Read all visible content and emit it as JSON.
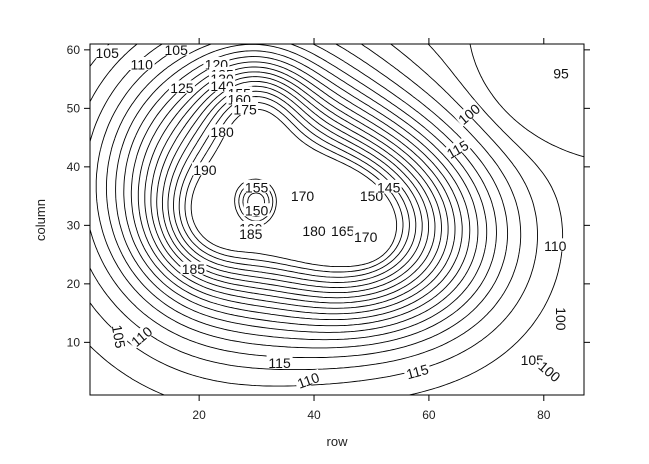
{
  "chart_data": {
    "type": "contour",
    "xlabel": "row",
    "ylabel": "column",
    "xlim": [
      1,
      87
    ],
    "ylim": [
      1,
      61
    ],
    "x_ticks": [
      20,
      40,
      60,
      80
    ],
    "y_ticks": [
      10,
      20,
      30,
      40,
      50,
      60
    ],
    "levels": [
      95,
      100,
      105,
      110,
      115,
      120,
      125,
      130,
      135,
      140,
      145,
      150,
      155,
      160,
      165,
      170,
      175,
      180,
      185,
      190
    ],
    "contour_labels": [
      {
        "text": "105",
        "x": 4,
        "y": 59.5
      },
      {
        "text": "105",
        "x": 16,
        "y": 60
      },
      {
        "text": "110",
        "x": 10,
        "y": 57.5
      },
      {
        "text": "120",
        "x": 23,
        "y": 57.5
      },
      {
        "text": "135",
        "x": 24,
        "y": 55.8
      },
      {
        "text": "130",
        "x": 24,
        "y": 55
      },
      {
        "text": "140",
        "x": 24,
        "y": 53.8
      },
      {
        "text": "125",
        "x": 17,
        "y": 53.5
      },
      {
        "text": "155",
        "x": 27,
        "y": 52.5
      },
      {
        "text": "160",
        "x": 27,
        "y": 51.5
      },
      {
        "text": "175",
        "x": 28,
        "y": 49.8
      },
      {
        "text": "180",
        "x": 24,
        "y": 46
      },
      {
        "text": "190",
        "x": 21,
        "y": 39.5
      },
      {
        "text": "155",
        "x": 30,
        "y": 36.5
      },
      {
        "text": "170",
        "x": 38,
        "y": 35
      },
      {
        "text": "150",
        "x": 50,
        "y": 35
      },
      {
        "text": "145",
        "x": 53,
        "y": 36.5
      },
      {
        "text": "150",
        "x": 30,
        "y": 32.5
      },
      {
        "text": "160",
        "x": 29,
        "y": 29.5
      },
      {
        "text": "185",
        "x": 29,
        "y": 28.5
      },
      {
        "text": "180",
        "x": 40,
        "y": 29
      },
      {
        "text": "165",
        "x": 45,
        "y": 29
      },
      {
        "text": "170",
        "x": 49,
        "y": 28
      },
      {
        "text": "185",
        "x": 19,
        "y": 22.5
      },
      {
        "text": "110",
        "x": 82,
        "y": 26.5
      },
      {
        "text": "95",
        "x": 83,
        "y": 56
      },
      {
        "text": "100",
        "x": 67,
        "y": 49,
        "angle": 40
      },
      {
        "text": "115",
        "x": 65,
        "y": 43,
        "angle": 30
      },
      {
        "text": "100",
        "x": 83,
        "y": 14,
        "angle": -90
      },
      {
        "text": "105",
        "x": 6,
        "y": 11,
        "angle": -80
      },
      {
        "text": "110",
        "x": 10,
        "y": 11,
        "angle": 40
      },
      {
        "text": "115",
        "x": 34,
        "y": 6.5
      },
      {
        "text": "110",
        "x": 39,
        "y": 3.5,
        "angle": 20
      },
      {
        "text": "115",
        "x": 58,
        "y": 5,
        "angle": 15
      },
      {
        "text": "105",
        "x": 78,
        "y": 7
      },
      {
        "text": "100",
        "x": 81,
        "y": 5,
        "angle": -40
      }
    ]
  }
}
